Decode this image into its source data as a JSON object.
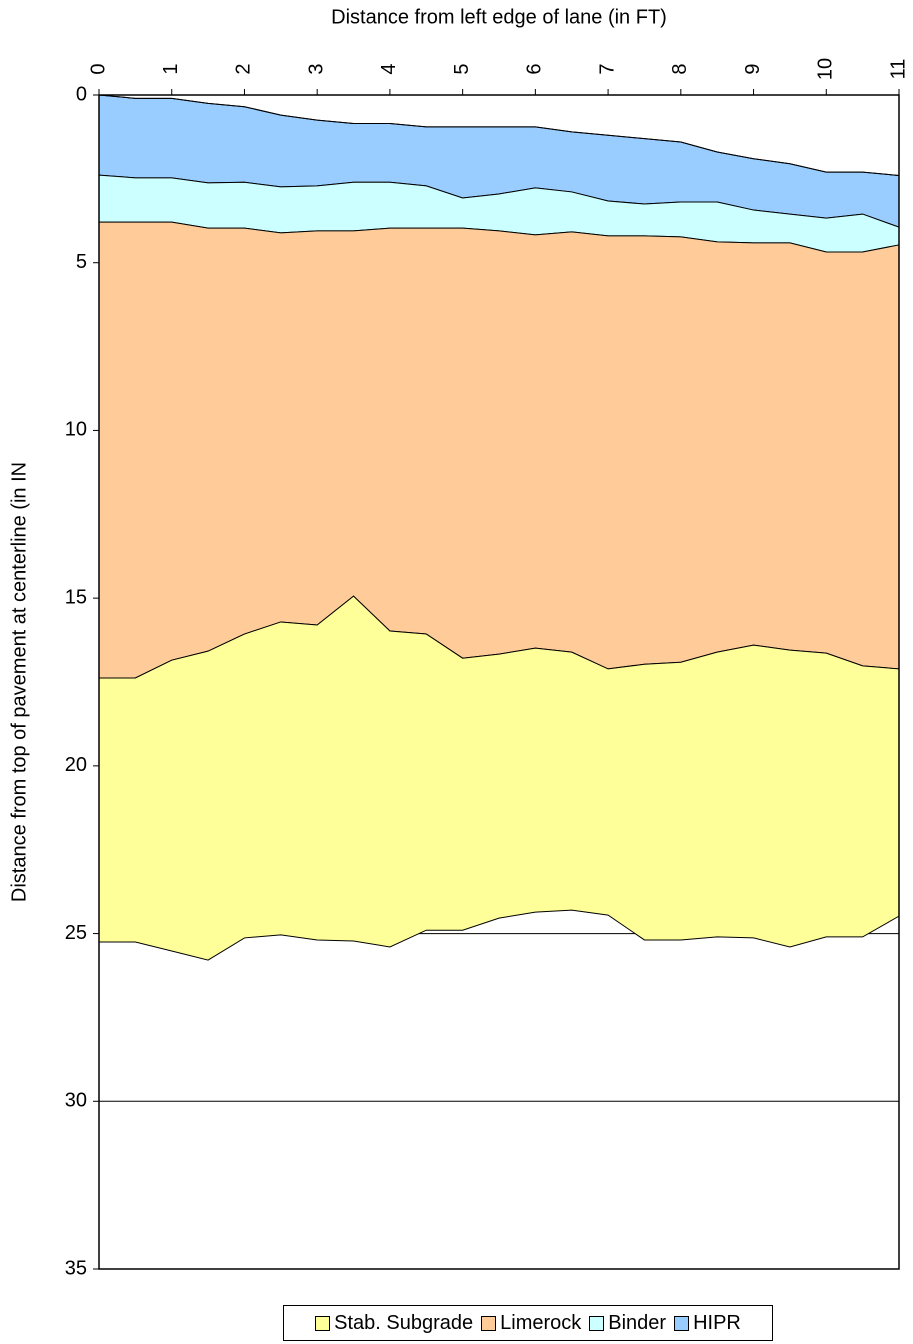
{
  "chart_data": {
    "type": "area",
    "stacked": true,
    "x_label": "Distance from left edge of  lane (in FT)",
    "y_label": "Distance from top of pavement at centerline (in IN",
    "x": [
      0,
      0.5,
      1,
      1.5,
      2,
      2.5,
      3,
      3.5,
      4,
      4.5,
      5,
      5.5,
      6,
      6.5,
      7,
      7.5,
      8,
      8.5,
      9,
      9.5,
      10,
      10.5,
      11
    ],
    "baseline": [
      0,
      0.1,
      0.1,
      0.25,
      0.35,
      0.6,
      0.75,
      0.85,
      0.85,
      0.95,
      0.95,
      0.95,
      0.95,
      1.1,
      1.2,
      1.3,
      1.4,
      1.7,
      1.9,
      2.05,
      2.3,
      2.3,
      2.4
    ],
    "series": [
      {
        "name": "Stab. Subgrade",
        "color": "#ffff99",
        "values": [
          7.87,
          7.87,
          8.67,
          9.21,
          9.06,
          9.33,
          9.39,
          10.28,
          9.42,
          8.83,
          8.11,
          7.87,
          7.87,
          7.69,
          7.34,
          8.22,
          8.28,
          8.49,
          8.73,
          8.85,
          8.46,
          8.08,
          7.37
        ]
      },
      {
        "name": "Limerock",
        "color": "#ffcc99",
        "values": [
          13.59,
          13.59,
          13.06,
          12.61,
          12.1,
          11.6,
          11.75,
          10.89,
          12.01,
          12.1,
          12.82,
          12.62,
          12.32,
          12.53,
          12.91,
          12.77,
          12.68,
          12.23,
          11.99,
          12.14,
          11.96,
          12.34,
          12.64
        ]
      },
      {
        "name": "Binder",
        "color": "#ccffff",
        "values": [
          1.4,
          1.32,
          1.32,
          1.35,
          1.37,
          1.37,
          1.34,
          1.45,
          1.37,
          1.26,
          0.9,
          1.1,
          1.4,
          1.19,
          1.04,
          0.95,
          1.04,
          1.19,
          0.98,
          0.86,
          1.01,
          1.13,
          0.53
        ]
      },
      {
        "name": "HIPR",
        "color": "#99ccff",
        "values": [
          2.39,
          2.37,
          2.37,
          2.37,
          2.25,
          2.14,
          1.96,
          1.75,
          1.75,
          1.76,
          2.12,
          2.0,
          1.82,
          1.79,
          1.96,
          1.95,
          1.79,
          1.49,
          1.53,
          1.5,
          1.37,
          1.25,
          1.54
        ]
      }
    ],
    "xlim": [
      0,
      11
    ],
    "xticks": [
      0,
      1,
      2,
      3,
      4,
      5,
      6,
      7,
      8,
      9,
      10,
      11
    ],
    "ylim": [
      0,
      35
    ],
    "yticks": [
      0,
      5,
      10,
      15,
      20,
      25,
      30,
      35
    ],
    "y_inverted": true,
    "x_axis_top": true,
    "grid": true,
    "legend": "bottom"
  }
}
